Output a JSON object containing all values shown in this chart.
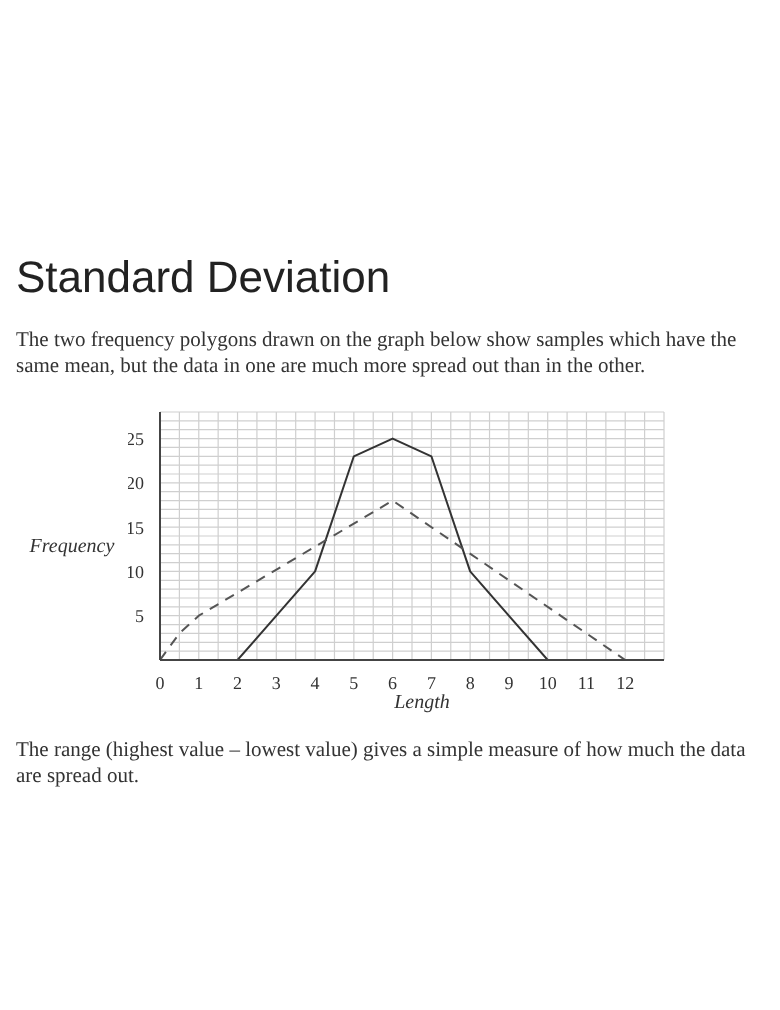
{
  "chart_data": {
    "type": "line",
    "title": "Standard Deviation",
    "subtitle": "The two frequency polygons drawn on the graph below show samples which have the same mean, but the data in one are much more spread out than in the other.",
    "xlabel": "Length",
    "ylabel": "Frequency",
    "annotations": [
      "The range (highest value – lowest value) gives a simple measure of how much the data are spread out."
    ],
    "series": [
      {
        "color": "#333333",
        "line_style": "solid",
        "x": [
          2,
          4,
          5,
          6,
          7,
          8,
          10
        ],
        "values": [
          0,
          10,
          23,
          25,
          23,
          10,
          0
        ]
      },
      {
        "color": "#555555",
        "line_style": "dashed",
        "x": [
          0,
          0.5,
          1,
          6,
          12
        ],
        "values": [
          0,
          3,
          5,
          18,
          0
        ]
      }
    ],
    "xlim": [
      0,
      13
    ],
    "xticks": [
      0,
      {
        "value": 0.5,
        "label": null
      },
      1,
      {
        "value": 1.5,
        "label": null
      },
      2,
      {
        "value": 2.5,
        "label": null
      },
      3,
      {
        "value": 3.5,
        "label": null
      },
      4,
      {
        "value": 4.5,
        "label": null
      },
      5,
      {
        "value": 5.5,
        "label": null
      },
      6,
      {
        "value": 6.5,
        "label": null
      },
      7,
      {
        "value": 7.5,
        "label": null
      },
      8,
      {
        "value": 8.5,
        "label": null
      },
      9,
      {
        "value": 9.5,
        "label": null
      },
      10,
      {
        "value": 10.5,
        "label": null
      },
      11,
      {
        "value": 11.5,
        "label": null
      },
      12,
      {
        "value": 12.5,
        "label": null
      },
      {
        "value": 13,
        "label": null
      }
    ],
    "ylim": [
      0,
      28
    ],
    "yticks": [
      {
        "value": 1,
        "label": null
      },
      {
        "value": 2,
        "label": null
      },
      {
        "value": 3,
        "label": null
      },
      {
        "value": 4,
        "label": null
      },
      5,
      {
        "value": 6,
        "label": null
      },
      {
        "value": 7,
        "label": null
      },
      {
        "value": 8,
        "label": null
      },
      {
        "value": 9,
        "label": null
      },
      10,
      {
        "value": 11,
        "label": null
      },
      {
        "value": 12,
        "label": null
      },
      {
        "value": 13,
        "label": null
      },
      {
        "value": 14,
        "label": null
      },
      15,
      {
        "value": 16,
        "label": null
      },
      {
        "value": 17,
        "label": null
      },
      {
        "value": 18,
        "label": null
      },
      {
        "value": 19,
        "label": null
      },
      20,
      {
        "value": 21,
        "label": null
      },
      {
        "value": 22,
        "label": null
      },
      {
        "value": 23,
        "label": null
      },
      {
        "value": 24,
        "label": null
      },
      25,
      {
        "value": 26,
        "label": null
      },
      {
        "value": 27,
        "label": null
      },
      {
        "value": 28,
        "label": null
      }
    ],
    "grid": true,
    "marker": "none"
  }
}
